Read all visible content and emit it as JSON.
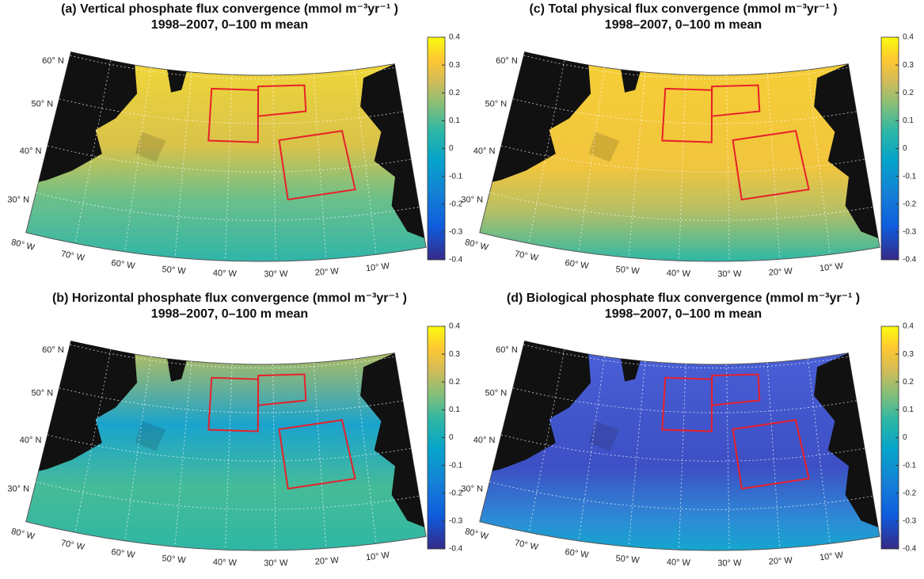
{
  "panels": [
    {
      "title": "(a) Vertical phosphate flux convergence (mmol m⁻³yr⁻¹ )",
      "subtitle": "1998–2007, 0–100 m mean"
    },
    {
      "title": "(c) Total physical flux convergence (mmol m⁻³yr⁻¹ )",
      "subtitle": "1998–2007, 0–100 m mean"
    },
    {
      "title": "(b) Horizontal phosphate flux convergence (mmol m⁻³yr⁻¹ )",
      "subtitle": "1998–2007, 0–100 m mean"
    },
    {
      "title": "(d) Biological phosphate flux convergence (mmol m⁻³yr⁻¹ )",
      "subtitle": "1998–2007, 0–100 m mean"
    }
  ],
  "colorbar": {
    "lim": [
      -0.4,
      0.4
    ],
    "ticks": [
      0.4,
      0.3,
      0.2,
      0.1,
      0,
      -0.1,
      -0.2,
      -0.3,
      -0.4
    ]
  },
  "lat_labels": [
    "60° N",
    "50° N",
    "40° N",
    "30° N"
  ],
  "lon_labels": [
    "80° W",
    "70° W",
    "60° W",
    "50° W",
    "40° W",
    "30° W",
    "20° W",
    "10° W"
  ]
}
